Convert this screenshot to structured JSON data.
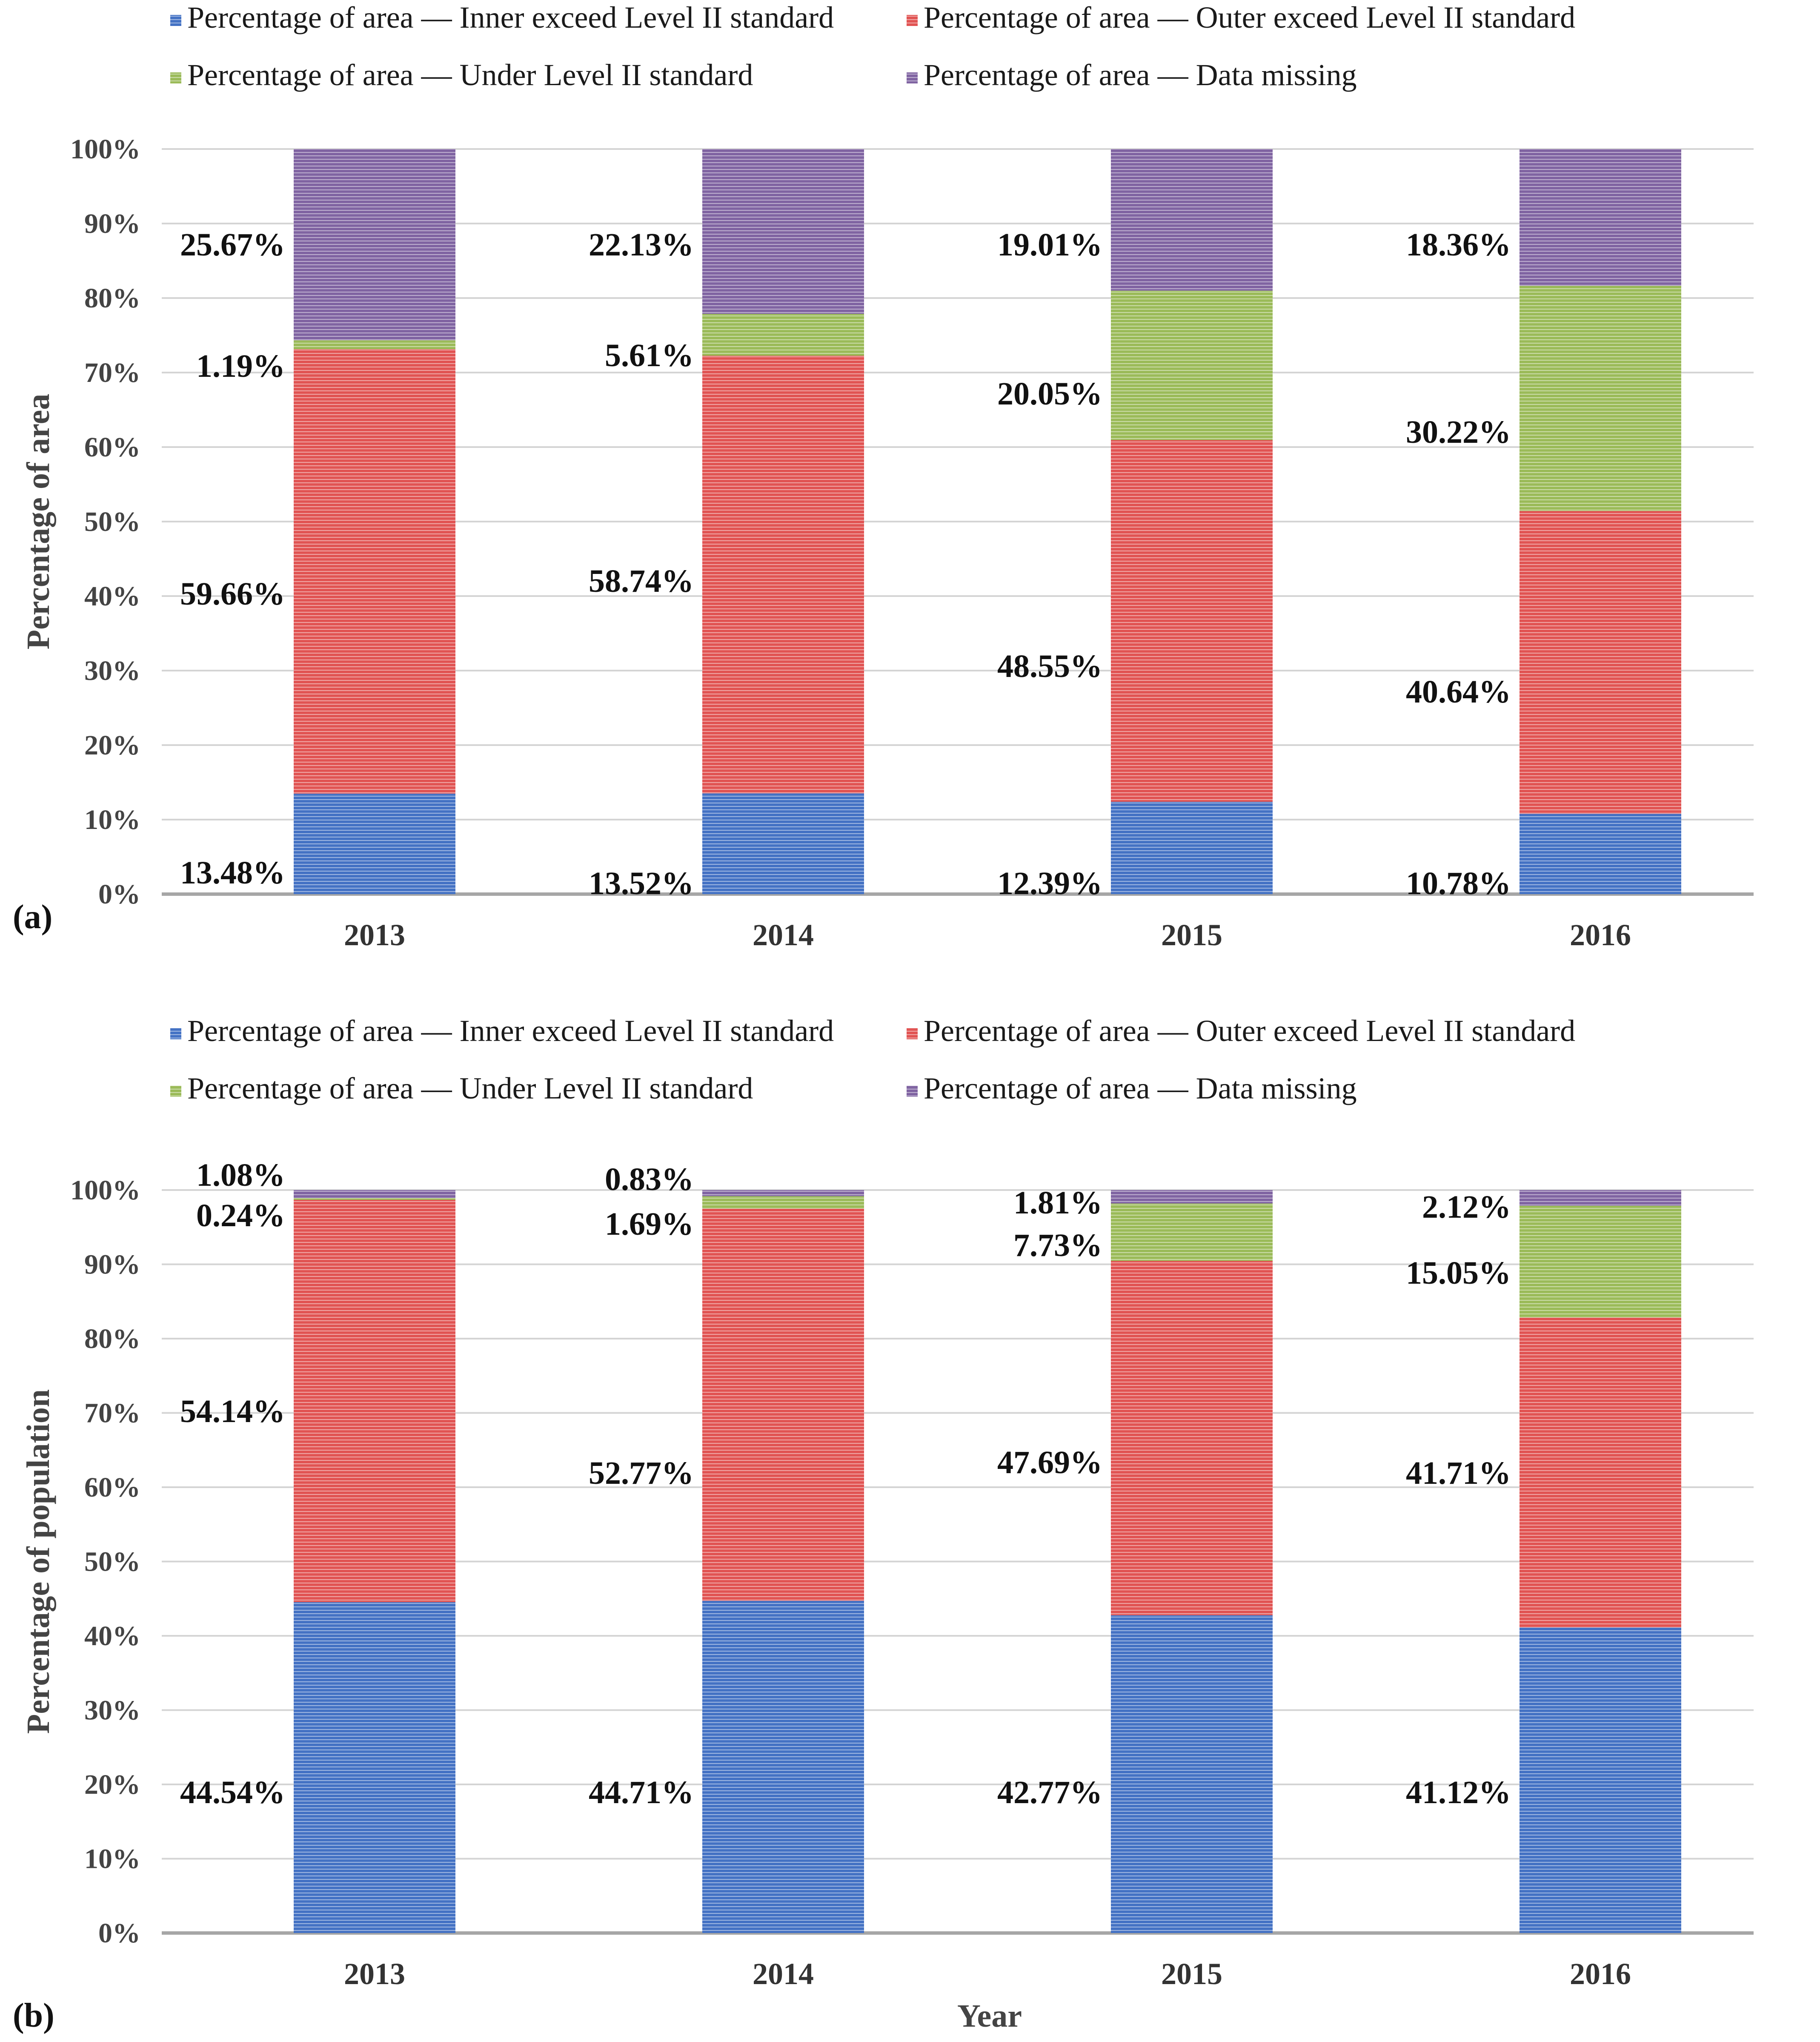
{
  "colors": {
    "inner": "#4472c4",
    "outer": "#e15453",
    "under": "#9bbb59",
    "missing": "#8064a2",
    "grid": "#d4d4d4",
    "axis": "#a6a6a6"
  },
  "chart_data": [
    {
      "type": "bar",
      "stacked": true,
      "panel_label": "(a)",
      "ylabel": "Percentage of area",
      "xlabel": "",
      "ylim": [
        0,
        100
      ],
      "yticks": [
        "0%",
        "10%",
        "20%",
        "30%",
        "40%",
        "50%",
        "60%",
        "70%",
        "80%",
        "90%",
        "100%"
      ],
      "categories": [
        "2013",
        "2014",
        "2015",
        "2016"
      ],
      "legend": [
        {
          "key": "inner",
          "label": "Percentage of area — Inner exceed Level II standard"
        },
        {
          "key": "outer",
          "label": "Percentage of area — Outer exceed Level II standard"
        },
        {
          "key": "under",
          "label": "Percentage of area — Under Level II standard"
        },
        {
          "key": "missing",
          "label": "Percentage of area — Data missing"
        }
      ],
      "series": [
        {
          "key": "inner",
          "name": "Percentage of area — Inner exceed Level II standard",
          "values": [
            13.48,
            13.52,
            12.39,
            10.78
          ],
          "labels": [
            "13.48%",
            "13.52%",
            "12.39%",
            "10.78%"
          ]
        },
        {
          "key": "outer",
          "name": "Percentage of area — Outer exceed Level II standard",
          "values": [
            59.66,
            58.74,
            48.55,
            40.64
          ],
          "labels": [
            "59.66%",
            "58.74%",
            "48.55%",
            "40.64%"
          ]
        },
        {
          "key": "under",
          "name": "Percentage of area — Under Level II standard",
          "values": [
            1.19,
            5.61,
            20.05,
            30.22
          ],
          "labels": [
            "1.19%",
            "5.61%",
            "20.05%",
            "30.22%"
          ]
        },
        {
          "key": "missing",
          "name": "Percentage of area — Data missing",
          "values": [
            25.67,
            22.13,
            19.01,
            18.36
          ],
          "labels": [
            "25.67%",
            "22.13%",
            "19.01%",
            "18.36%"
          ]
        }
      ]
    },
    {
      "type": "bar",
      "stacked": true,
      "panel_label": "(b)",
      "ylabel": "Percentage of population",
      "xlabel": "Year",
      "ylim": [
        0,
        100
      ],
      "yticks": [
        "0%",
        "10%",
        "20%",
        "30%",
        "40%",
        "50%",
        "60%",
        "70%",
        "80%",
        "90%",
        "100%"
      ],
      "categories": [
        "2013",
        "2014",
        "2015",
        "2016"
      ],
      "legend": [
        {
          "key": "inner",
          "label": "Percentage of area — Inner exceed Level II standard"
        },
        {
          "key": "outer",
          "label": "Percentage of area — Outer exceed Level II standard"
        },
        {
          "key": "under",
          "label": "Percentage of area — Under Level II standard"
        },
        {
          "key": "missing",
          "label": "Percentage of area — Data missing"
        }
      ],
      "series": [
        {
          "key": "inner",
          "name": "Percentage of area — Inner exceed Level II standard",
          "values": [
            44.54,
            44.71,
            42.77,
            41.12
          ],
          "labels": [
            "44.54%",
            "44.71%",
            "42.77%",
            "41.12%"
          ]
        },
        {
          "key": "outer",
          "name": "Percentage of area — Outer exceed Level II standard",
          "values": [
            54.14,
            52.77,
            47.69,
            41.71
          ],
          "labels": [
            "54.14%",
            "52.77%",
            "47.69%",
            "41.71%"
          ]
        },
        {
          "key": "under",
          "name": "Percentage of area — Under Level II standard",
          "values": [
            0.24,
            1.69,
            7.73,
            15.05
          ],
          "labels": [
            "0.24%",
            "1.69%",
            "7.73%",
            "15.05%"
          ]
        },
        {
          "key": "missing",
          "name": "Percentage of area — Data missing",
          "values": [
            1.08,
            0.83,
            1.81,
            2.12
          ],
          "labels": [
            "1.08%",
            "0.83%",
            "1.81%",
            "2.12%"
          ]
        }
      ]
    }
  ]
}
